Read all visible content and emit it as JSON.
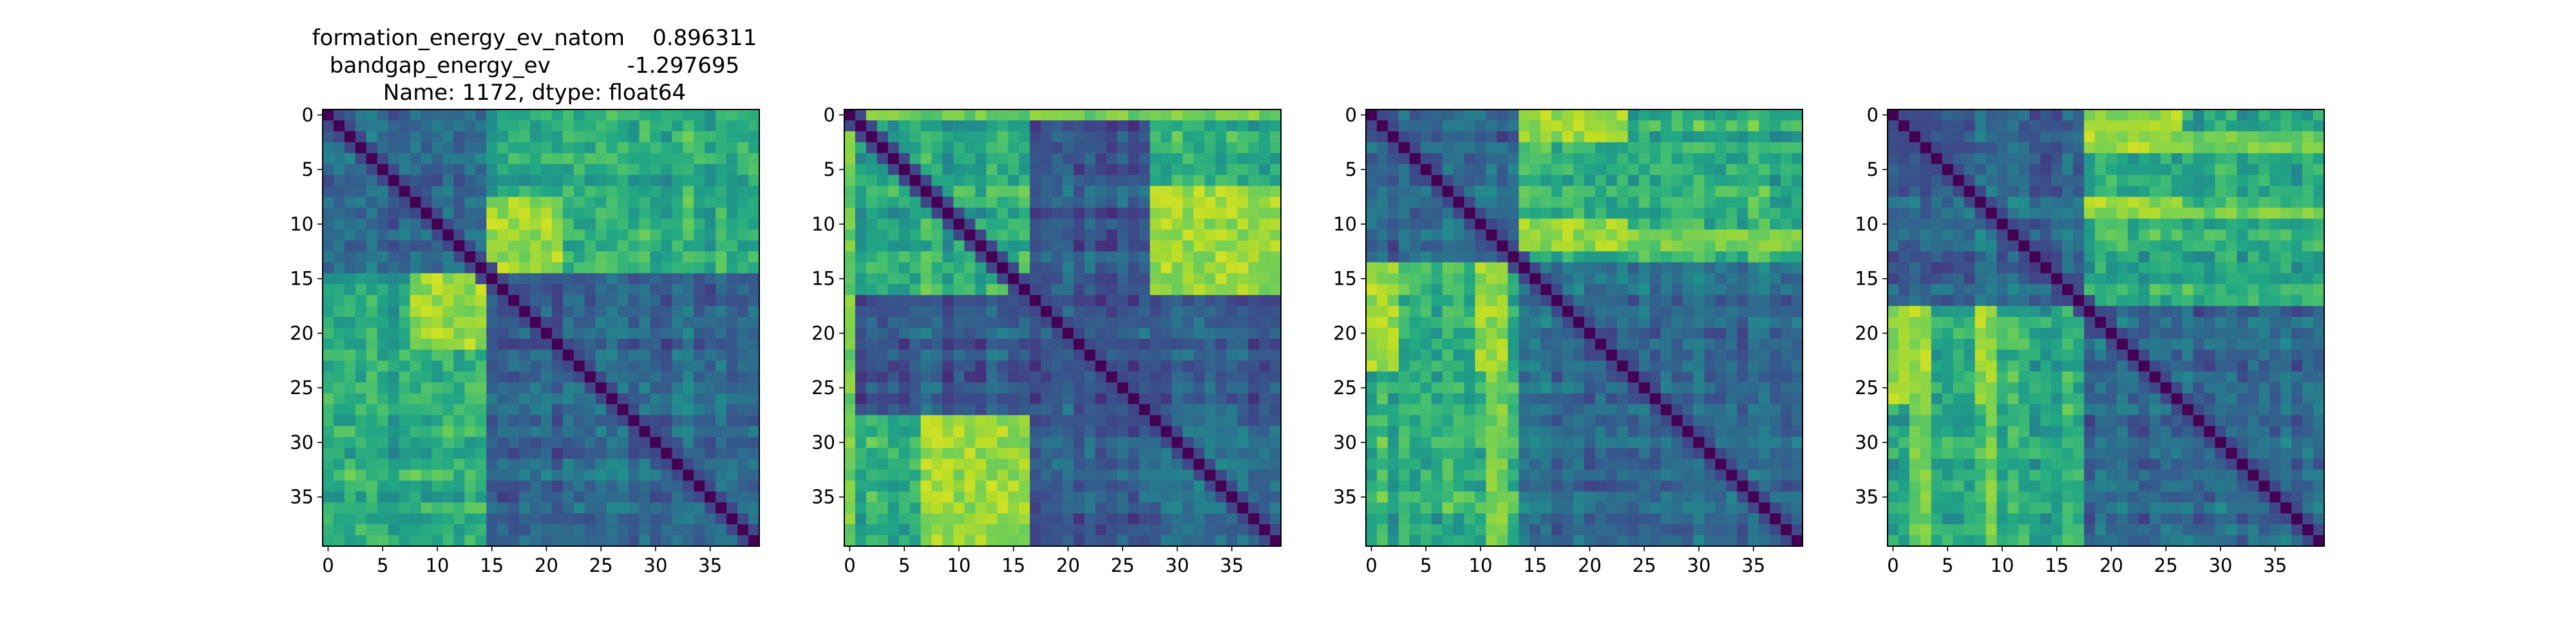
{
  "chart_data": [
    {
      "type": "heatmap",
      "title_lines": [
        "formation_energy_ev_natom    0.896311",
        "bandgap_energy_ev           -1.297695",
        "Name: 1172, dtype: float64"
      ],
      "size": 40,
      "colormap": "viridis",
      "xticks": [
        0,
        5,
        10,
        15,
        20,
        25,
        30,
        35
      ],
      "yticks": [
        0,
        5,
        10,
        15,
        20,
        25,
        30,
        35
      ],
      "block_boundaries": [
        15
      ],
      "high_blocks": [
        [
          0,
          15,
          15,
          40
        ]
      ],
      "low_blocks": [],
      "hot_blocks": [
        [
          8,
          15,
          15,
          22
        ]
      ],
      "hot_rows": [],
      "hot_cols": [],
      "seed": 11
    },
    {
      "type": "heatmap",
      "title_lines": [],
      "size": 40,
      "colormap": "viridis",
      "xticks": [
        0,
        5,
        10,
        15,
        20,
        25,
        30,
        35
      ],
      "yticks": [
        0,
        5,
        10,
        15,
        20,
        25,
        30,
        35
      ],
      "block_boundaries": [
        17,
        28
      ],
      "high_blocks": [
        [
          0,
          17,
          28,
          40
        ],
        [
          0,
          17,
          0,
          17
        ],
        [
          17,
          28,
          0,
          17
        ]
      ],
      "low_blocks": [
        [
          0,
          17,
          17,
          28
        ],
        [
          17,
          28,
          17,
          28
        ],
        [
          17,
          28,
          28,
          40
        ]
      ],
      "hot_blocks": [
        [
          7,
          17,
          28,
          40
        ]
      ],
      "hot_rows": [
        0
      ],
      "hot_cols": [
        0
      ],
      "seed": 23
    },
    {
      "type": "heatmap",
      "title_lines": [],
      "size": 40,
      "colormap": "viridis",
      "xticks": [
        0,
        5,
        10,
        15,
        20,
        25,
        30,
        35
      ],
      "yticks": [
        0,
        5,
        10,
        15,
        20,
        25,
        30,
        35
      ],
      "block_boundaries": [
        14
      ],
      "high_blocks": [
        [
          0,
          14,
          14,
          40
        ]
      ],
      "low_blocks": [],
      "hot_blocks": [
        [
          0,
          3,
          14,
          24
        ],
        [
          10,
          13,
          14,
          24
        ]
      ],
      "hot_rows": [],
      "hot_cols": [
        11,
        12
      ],
      "seed": 37
    },
    {
      "type": "heatmap",
      "title_lines": [],
      "size": 40,
      "colormap": "viridis",
      "xticks": [
        0,
        5,
        10,
        15,
        20,
        25,
        30,
        35
      ],
      "yticks": [
        0,
        5,
        10,
        15,
        20,
        25,
        30,
        35
      ],
      "block_boundaries": [
        18
      ],
      "high_blocks": [
        [
          0,
          18,
          18,
          40
        ]
      ],
      "low_blocks": [],
      "hot_blocks": [
        [
          0,
          4,
          18,
          27
        ],
        [
          8,
          10,
          18,
          27
        ]
      ],
      "hot_rows": [],
      "hot_cols": [
        2,
        3,
        9
      ],
      "seed": 51
    }
  ]
}
